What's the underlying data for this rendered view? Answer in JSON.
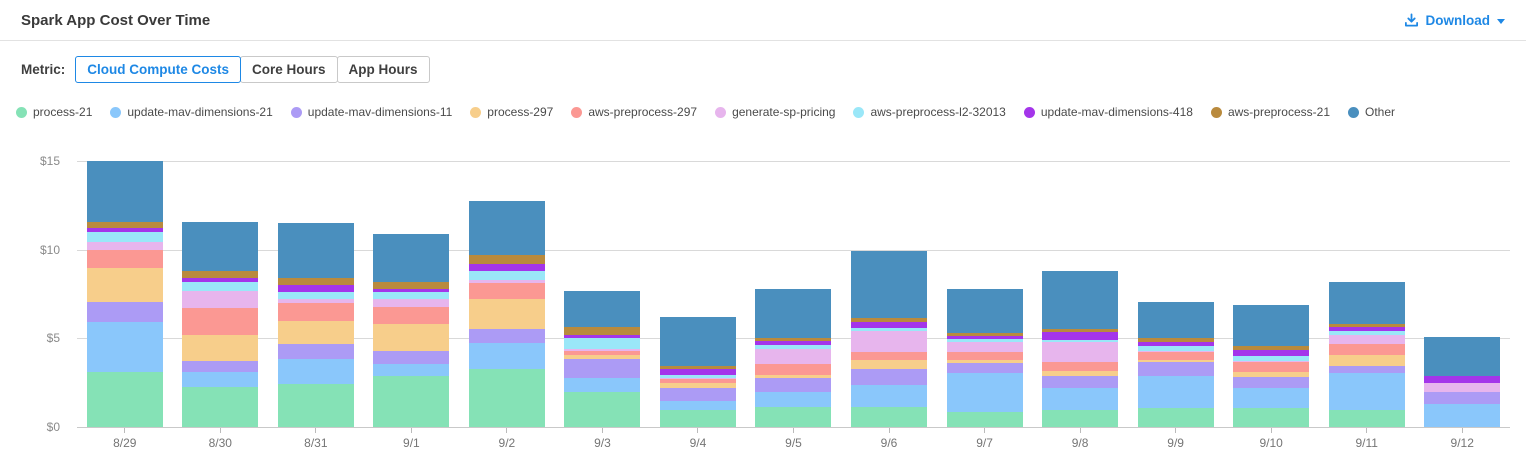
{
  "header": {
    "title": "Spark App Cost Over Time",
    "download_label": "Download"
  },
  "metric": {
    "label": "Metric:",
    "options": [
      {
        "label": "Cloud Compute Costs",
        "active": true
      },
      {
        "label": "Core Hours",
        "active": false
      },
      {
        "label": "App Hours",
        "active": false
      }
    ]
  },
  "colors": {
    "accent": "#1e88e5"
  },
  "chart_data": {
    "type": "bar",
    "stacked": true,
    "title": "Spark App Cost Over Time",
    "xlabel": "",
    "ylabel": "",
    "ylim": [
      0,
      15
    ],
    "y_ticks": [
      "$15",
      "$10",
      "$5",
      "$0"
    ],
    "grid": true,
    "legend_position": "top",
    "categories": [
      "8/29",
      "8/30",
      "8/31",
      "9/1",
      "9/2",
      "9/3",
      "9/4",
      "9/5",
      "9/6",
      "9/7",
      "9/8",
      "9/9",
      "9/10",
      "9/11",
      "9/12"
    ],
    "series": [
      {
        "name": "process-21",
        "color": "#85e2b6",
        "values": [
          3.1,
          2.25,
          2.4,
          2.9,
          3.25,
          2.0,
          0.95,
          1.15,
          1.15,
          0.85,
          0.95,
          1.05,
          1.05,
          0.95,
          0.0
        ]
      },
      {
        "name": "update-mav-dimensions-21",
        "color": "#8ac7fb",
        "values": [
          2.85,
          0.85,
          1.45,
          0.65,
          1.5,
          0.75,
          0.5,
          0.85,
          1.2,
          2.2,
          1.25,
          1.85,
          1.15,
          2.1,
          1.3
        ]
      },
      {
        "name": "update-mav-dimensions-11",
        "color": "#ac9bf5",
        "values": [
          1.1,
          0.65,
          0.85,
          0.75,
          0.8,
          1.1,
          0.75,
          0.75,
          0.95,
          0.55,
          0.7,
          0.75,
          0.65,
          0.4,
          0.65
        ]
      },
      {
        "name": "process-297",
        "color": "#f7ce8b",
        "values": [
          1.9,
          1.45,
          1.3,
          1.5,
          1.65,
          0.2,
          0.3,
          0.2,
          0.5,
          0.15,
          0.25,
          0.15,
          0.25,
          0.6,
          0.0
        ]
      },
      {
        "name": "aws-preprocess-297",
        "color": "#fb9893",
        "values": [
          1.05,
          1.5,
          1.0,
          1.0,
          0.9,
          0.25,
          0.2,
          0.6,
          0.45,
          0.45,
          0.5,
          0.45,
          0.55,
          0.65,
          0.0
        ]
      },
      {
        "name": "generate-sp-pricing",
        "color": "#e7b5ed",
        "values": [
          0.45,
          1.0,
          0.2,
          0.4,
          0.2,
          0.1,
          0.05,
          0.85,
          1.15,
          0.6,
          1.15,
          0.05,
          0.1,
          0.5,
          0.55
        ]
      },
      {
        "name": "aws-preprocess-l2-32013",
        "color": "#9ae7f8",
        "values": [
          0.55,
          0.5,
          0.4,
          0.4,
          0.5,
          0.6,
          0.2,
          0.25,
          0.2,
          0.15,
          0.1,
          0.25,
          0.25,
          0.25,
          0.0
        ]
      },
      {
        "name": "update-mav-dimensions-418",
        "color": "#a435ea",
        "values": [
          0.2,
          0.2,
          0.4,
          0.2,
          0.4,
          0.2,
          0.35,
          0.2,
          0.3,
          0.15,
          0.45,
          0.25,
          0.35,
          0.2,
          0.4
        ]
      },
      {
        "name": "aws-preprocess-21",
        "color": "#b98a3d",
        "values": [
          0.35,
          0.4,
          0.4,
          0.4,
          0.5,
          0.45,
          0.15,
          0.15,
          0.25,
          0.2,
          0.2,
          0.25,
          0.25,
          0.2,
          0.0
        ]
      },
      {
        "name": "Other",
        "color": "#4a8fbe",
        "values": [
          3.45,
          2.75,
          3.1,
          2.7,
          3.05,
          2.05,
          2.75,
          2.8,
          3.8,
          2.5,
          3.25,
          2.0,
          2.3,
          2.35,
          2.15
        ]
      }
    ]
  }
}
